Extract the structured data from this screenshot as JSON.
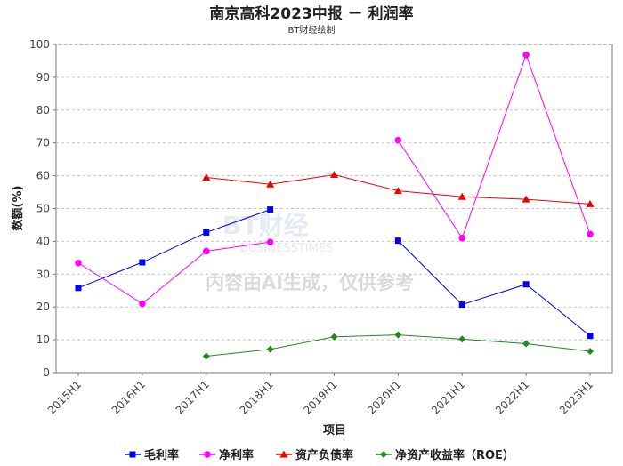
{
  "chart_data": {
    "type": "line",
    "title": "南京高科2023中报 － 利润率",
    "subtitle": "BT财经绘制",
    "xlabel": "项目",
    "ylabel": "数额(%)",
    "ylim": [
      0,
      100
    ],
    "yticks": [
      0,
      10,
      20,
      30,
      40,
      50,
      60,
      70,
      80,
      90,
      100
    ],
    "grid": true,
    "legend_position": "bottom",
    "categories": [
      "2015H1",
      "2016H1",
      "2017H1",
      "2018H1",
      "2019H1",
      "2020H1",
      "2021H1",
      "2022H1",
      "2023H1"
    ],
    "series": [
      {
        "name": "毛利率",
        "color": "#0000ee",
        "marker": "square",
        "values": [
          25.8,
          33.6,
          42.7,
          49.7,
          null,
          40.2,
          20.7,
          26.9,
          11.2
        ]
      },
      {
        "name": "净利率",
        "color": "#ff00ff",
        "marker": "circle",
        "values": [
          33.4,
          21.0,
          37.0,
          39.8,
          null,
          70.8,
          41.0,
          96.8,
          42.2
        ]
      },
      {
        "name": "资产负债率",
        "color": "#ee0000",
        "marker": "triangle",
        "values": [
          null,
          null,
          59.5,
          57.4,
          60.3,
          55.4,
          53.6,
          52.8,
          51.4
        ]
      },
      {
        "name": "净资产收益率（ROE）",
        "color": "#228822",
        "marker": "diamond",
        "values": [
          null,
          null,
          5.0,
          7.1,
          10.9,
          11.5,
          10.2,
          8.8,
          6.5
        ]
      }
    ],
    "watermark": {
      "brand": "BT财经",
      "brand_en": "BUSINESSTIMES",
      "notice": "内容由AI生成，仅供参考"
    }
  }
}
